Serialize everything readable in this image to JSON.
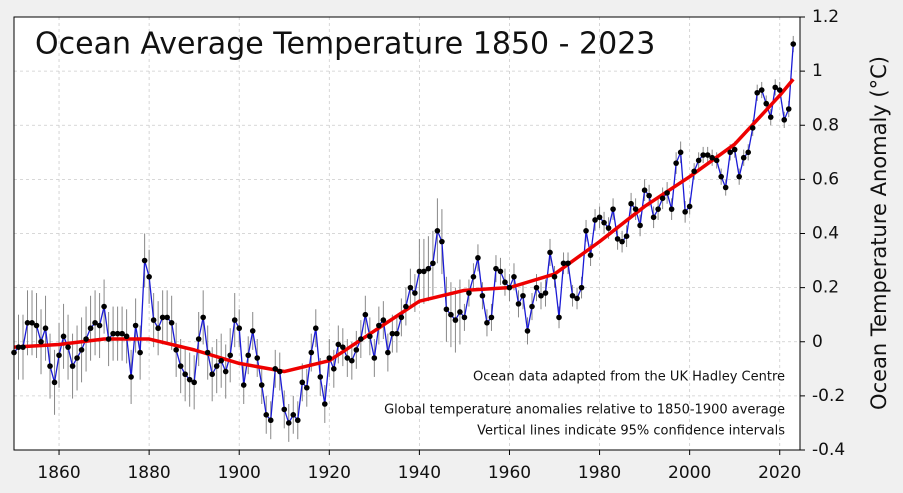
{
  "chart_data": {
    "type": "line",
    "title": "Ocean Average Temperature 1850 - 2023",
    "y_label": "Ocean Temperature Anomaly (°C)",
    "annotations": [
      "Ocean data adapted from the UK Hadley Centre",
      "Global temperature anomalies relative to 1850-1900 average",
      "Vertical lines indicate 95% confidence intervals"
    ],
    "xlim": [
      1850,
      2024.5
    ],
    "ylim": [
      -0.4,
      1.2
    ],
    "xticks": [
      1860,
      1880,
      1900,
      1920,
      1940,
      1960,
      1980,
      2000,
      2020
    ],
    "yticks": [
      -0.4,
      -0.2,
      0,
      0.2,
      0.4,
      0.6,
      0.8,
      1,
      1.2
    ],
    "grid": true,
    "color": "#1a1ad6",
    "marker_color": "#000000",
    "error_color": "#888888",
    "x": [
      1850,
      1851,
      1852,
      1853,
      1854,
      1855,
      1856,
      1857,
      1858,
      1859,
      1860,
      1861,
      1862,
      1863,
      1864,
      1865,
      1866,
      1867,
      1868,
      1869,
      1870,
      1871,
      1872,
      1873,
      1874,
      1875,
      1876,
      1877,
      1878,
      1879,
      1880,
      1881,
      1882,
      1883,
      1884,
      1885,
      1886,
      1887,
      1888,
      1889,
      1890,
      1891,
      1892,
      1893,
      1894,
      1895,
      1896,
      1897,
      1898,
      1899,
      1900,
      1901,
      1902,
      1903,
      1904,
      1905,
      1906,
      1907,
      1908,
      1909,
      1910,
      1911,
      1912,
      1913,
      1914,
      1915,
      1916,
      1917,
      1918,
      1919,
      1920,
      1921,
      1922,
      1923,
      1924,
      1925,
      1926,
      1927,
      1928,
      1929,
      1930,
      1931,
      1932,
      1933,
      1934,
      1935,
      1936,
      1937,
      1938,
      1939,
      1940,
      1941,
      1942,
      1943,
      1944,
      1945,
      1946,
      1947,
      1948,
      1949,
      1950,
      1951,
      1952,
      1953,
      1954,
      1955,
      1956,
      1957,
      1958,
      1959,
      1960,
      1961,
      1962,
      1963,
      1964,
      1965,
      1966,
      1967,
      1968,
      1969,
      1970,
      1971,
      1972,
      1973,
      1974,
      1975,
      1976,
      1977,
      1978,
      1979,
      1980,
      1981,
      1982,
      1983,
      1984,
      1985,
      1986,
      1987,
      1988,
      1989,
      1990,
      1991,
      1992,
      1993,
      1994,
      1995,
      1996,
      1997,
      1998,
      1999,
      2000,
      2001,
      2002,
      2003,
      2004,
      2005,
      2006,
      2007,
      2008,
      2009,
      2010,
      2011,
      2012,
      2013,
      2014,
      2015,
      2016,
      2017,
      2018,
      2019,
      2020,
      2021,
      2022,
      2023
    ],
    "values": [
      -0.04,
      -0.02,
      -0.02,
      0.07,
      0.07,
      0.06,
      0.0,
      0.05,
      -0.09,
      -0.15,
      -0.05,
      0.02,
      -0.02,
      -0.09,
      -0.06,
      -0.03,
      0.01,
      0.05,
      0.07,
      0.06,
      0.13,
      0.01,
      0.03,
      0.03,
      0.03,
      0.02,
      -0.13,
      0.06,
      -0.04,
      0.3,
      0.24,
      0.08,
      0.05,
      0.09,
      0.09,
      0.07,
      -0.03,
      -0.09,
      -0.12,
      -0.14,
      -0.15,
      0.01,
      0.09,
      -0.04,
      -0.12,
      -0.09,
      -0.07,
      -0.11,
      -0.05,
      0.08,
      0.05,
      -0.16,
      -0.05,
      0.04,
      -0.06,
      -0.16,
      -0.27,
      -0.29,
      -0.1,
      -0.11,
      -0.25,
      -0.3,
      -0.27,
      -0.29,
      -0.15,
      -0.17,
      -0.04,
      0.05,
      -0.13,
      -0.23,
      -0.06,
      -0.1,
      -0.01,
      -0.02,
      -0.06,
      -0.07,
      -0.03,
      0.01,
      0.1,
      0.02,
      -0.06,
      0.06,
      0.08,
      -0.04,
      0.03,
      0.03,
      0.09,
      0.13,
      0.2,
      0.18,
      0.26,
      0.26,
      0.27,
      0.29,
      0.41,
      0.37,
      0.12,
      0.1,
      0.08,
      0.11,
      0.09,
      0.18,
      0.24,
      0.31,
      0.17,
      0.07,
      0.09,
      0.27,
      0.26,
      0.22,
      0.2,
      0.24,
      0.14,
      0.17,
      0.04,
      0.13,
      0.2,
      0.17,
      0.18,
      0.33,
      0.24,
      0.09,
      0.29,
      0.29,
      0.17,
      0.16,
      0.2,
      0.41,
      0.32,
      0.45,
      0.46,
      0.44,
      0.42,
      0.49,
      0.38,
      0.37,
      0.39,
      0.51,
      0.49,
      0.43,
      0.56,
      0.54,
      0.46,
      0.49,
      0.53,
      0.55,
      0.49,
      0.66,
      0.7,
      0.48,
      0.5,
      0.63,
      0.67,
      0.69,
      0.69,
      0.68,
      0.67,
      0.61,
      0.57,
      0.7,
      0.71,
      0.61,
      0.68,
      0.7,
      0.79,
      0.92,
      0.93,
      0.88,
      0.83,
      0.94,
      0.93,
      0.82,
      0.86,
      1.1
    ],
    "errors": [
      0.12,
      0.12,
      0.12,
      0.12,
      0.12,
      0.12,
      0.12,
      0.12,
      0.12,
      0.12,
      0.12,
      0.12,
      0.12,
      0.12,
      0.12,
      0.12,
      0.12,
      0.12,
      0.12,
      0.12,
      0.1,
      0.1,
      0.1,
      0.1,
      0.1,
      0.1,
      0.1,
      0.1,
      0.1,
      0.1,
      0.1,
      0.1,
      0.1,
      0.1,
      0.1,
      0.1,
      0.1,
      0.1,
      0.1,
      0.1,
      0.1,
      0.1,
      0.1,
      0.1,
      0.1,
      0.1,
      0.1,
      0.1,
      0.1,
      0.1,
      0.07,
      0.07,
      0.07,
      0.07,
      0.07,
      0.07,
      0.07,
      0.07,
      0.07,
      0.07,
      0.07,
      0.07,
      0.07,
      0.07,
      0.07,
      0.07,
      0.07,
      0.07,
      0.07,
      0.07,
      0.07,
      0.07,
      0.07,
      0.07,
      0.07,
      0.07,
      0.07,
      0.07,
      0.07,
      0.07,
      0.07,
      0.07,
      0.07,
      0.07,
      0.07,
      0.07,
      0.07,
      0.07,
      0.07,
      0.07,
      0.12,
      0.12,
      0.12,
      0.12,
      0.12,
      0.12,
      0.12,
      0.12,
      0.12,
      0.12,
      0.05,
      0.05,
      0.05,
      0.05,
      0.05,
      0.05,
      0.05,
      0.05,
      0.05,
      0.05,
      0.05,
      0.05,
      0.05,
      0.05,
      0.05,
      0.05,
      0.05,
      0.05,
      0.05,
      0.05,
      0.04,
      0.04,
      0.04,
      0.04,
      0.04,
      0.04,
      0.04,
      0.04,
      0.04,
      0.04,
      0.04,
      0.04,
      0.04,
      0.04,
      0.04,
      0.04,
      0.04,
      0.04,
      0.04,
      0.04,
      0.04,
      0.04,
      0.04,
      0.04,
      0.04,
      0.04,
      0.04,
      0.04,
      0.04,
      0.04,
      0.03,
      0.03,
      0.03,
      0.03,
      0.03,
      0.03,
      0.03,
      0.03,
      0.03,
      0.03,
      0.03,
      0.03,
      0.03,
      0.03,
      0.03,
      0.03,
      0.03,
      0.03,
      0.03,
      0.03,
      0.03,
      0.03,
      0.03,
      0.03
    ],
    "trend": {
      "color": "#ee0000",
      "x": [
        1850,
        1860,
        1870,
        1880,
        1890,
        1900,
        1910,
        1920,
        1930,
        1940,
        1950,
        1960,
        1970,
        1980,
        1990,
        2000,
        2010,
        2020,
        2023
      ],
      "values": [
        -0.02,
        -0.01,
        0.01,
        0.01,
        -0.03,
        -0.08,
        -0.11,
        -0.07,
        0.04,
        0.15,
        0.19,
        0.2,
        0.25,
        0.37,
        0.5,
        0.61,
        0.73,
        0.91,
        0.97
      ]
    }
  }
}
